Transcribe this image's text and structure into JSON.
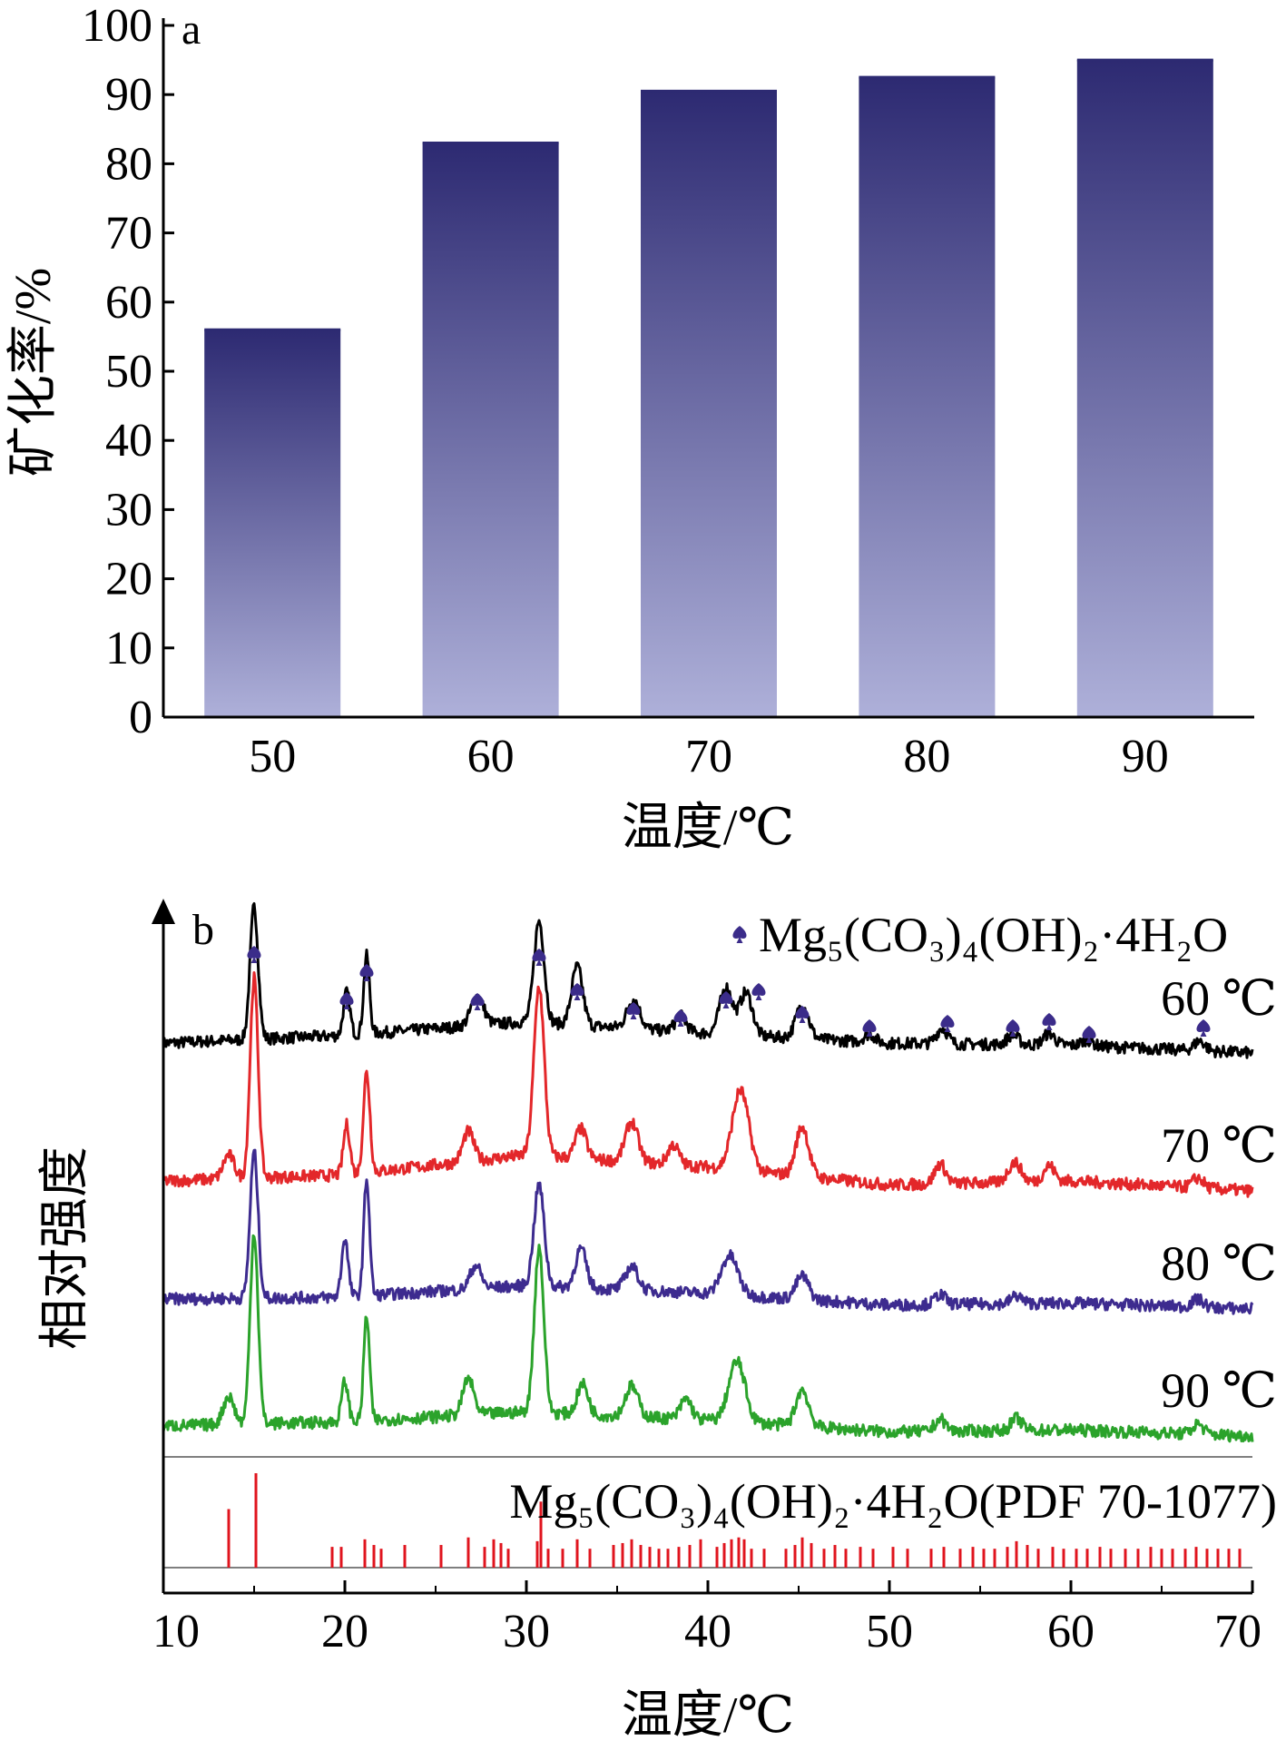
{
  "colors": {
    "bar_top": "#2d2a72",
    "bar_bottom": "#aeb0d9",
    "marker": "#3b2c8a",
    "axis": "#000000",
    "reference_line": "#7f7f7f",
    "reference_stick": "#e0141e"
  },
  "chart_data": [
    {
      "type": "bar",
      "panel_label": "a",
      "categories": [
        "50",
        "60",
        "70",
        "80",
        "90"
      ],
      "values": [
        56,
        83,
        90.5,
        92.5,
        95
      ],
      "xlabel": "温度/℃",
      "ylabel": "矿化率/%",
      "ylim": [
        0,
        100
      ],
      "yticks": [
        "0",
        "10",
        "20",
        "30",
        "40",
        "50",
        "60",
        "70",
        "80",
        "90",
        "100"
      ]
    },
    {
      "type": "line",
      "panel_label": "b",
      "xlabel": "温度/℃",
      "ylabel": "相对强度",
      "xlim": [
        10,
        70
      ],
      "xticks": [
        "10",
        "20",
        "30",
        "40",
        "50",
        "60",
        "70"
      ],
      "legend": {
        "symbol": "spade-marker",
        "text": "Mg₅(CO₃)₄(OH)₂·4H₂O",
        "position": "top-right"
      },
      "reference": {
        "label": "Mg₅(CO₃)₄(OH)₂·4H₂O(PDF 70-1077)",
        "peaks": [
          {
            "x": 13.6,
            "h": 0.62
          },
          {
            "x": 15.1,
            "h": 1.0
          },
          {
            "x": 19.3,
            "h": 0.22
          },
          {
            "x": 19.8,
            "h": 0.22
          },
          {
            "x": 21.1,
            "h": 0.3
          },
          {
            "x": 21.6,
            "h": 0.24
          },
          {
            "x": 22.0,
            "h": 0.2
          },
          {
            "x": 23.3,
            "h": 0.24
          },
          {
            "x": 25.3,
            "h": 0.24
          },
          {
            "x": 26.8,
            "h": 0.32
          },
          {
            "x": 27.7,
            "h": 0.22
          },
          {
            "x": 28.2,
            "h": 0.3
          },
          {
            "x": 28.6,
            "h": 0.26
          },
          {
            "x": 29.0,
            "h": 0.2
          },
          {
            "x": 30.6,
            "h": 0.28
          },
          {
            "x": 30.8,
            "h": 0.7
          },
          {
            "x": 31.2,
            "h": 0.2
          },
          {
            "x": 32.0,
            "h": 0.2
          },
          {
            "x": 32.8,
            "h": 0.3
          },
          {
            "x": 33.5,
            "h": 0.2
          },
          {
            "x": 34.8,
            "h": 0.24
          },
          {
            "x": 35.3,
            "h": 0.26
          },
          {
            "x": 35.8,
            "h": 0.3
          },
          {
            "x": 36.3,
            "h": 0.24
          },
          {
            "x": 36.8,
            "h": 0.22
          },
          {
            "x": 37.3,
            "h": 0.2
          },
          {
            "x": 37.8,
            "h": 0.2
          },
          {
            "x": 38.4,
            "h": 0.22
          },
          {
            "x": 39.0,
            "h": 0.24
          },
          {
            "x": 39.6,
            "h": 0.3
          },
          {
            "x": 40.5,
            "h": 0.22
          },
          {
            "x": 40.9,
            "h": 0.26
          },
          {
            "x": 41.3,
            "h": 0.3
          },
          {
            "x": 41.7,
            "h": 0.32
          },
          {
            "x": 42.0,
            "h": 0.3
          },
          {
            "x": 42.4,
            "h": 0.2
          },
          {
            "x": 43.1,
            "h": 0.2
          },
          {
            "x": 44.3,
            "h": 0.2
          },
          {
            "x": 44.8,
            "h": 0.24
          },
          {
            "x": 45.2,
            "h": 0.32
          },
          {
            "x": 45.7,
            "h": 0.26
          },
          {
            "x": 46.4,
            "h": 0.2
          },
          {
            "x": 47.0,
            "h": 0.24
          },
          {
            "x": 47.6,
            "h": 0.2
          },
          {
            "x": 48.4,
            "h": 0.22
          },
          {
            "x": 49.1,
            "h": 0.2
          },
          {
            "x": 50.2,
            "h": 0.22
          },
          {
            "x": 51.0,
            "h": 0.2
          },
          {
            "x": 52.3,
            "h": 0.2
          },
          {
            "x": 53.0,
            "h": 0.22
          },
          {
            "x": 53.9,
            "h": 0.2
          },
          {
            "x": 54.6,
            "h": 0.22
          },
          {
            "x": 55.2,
            "h": 0.2
          },
          {
            "x": 55.8,
            "h": 0.2
          },
          {
            "x": 56.5,
            "h": 0.22
          },
          {
            "x": 57.0,
            "h": 0.28
          },
          {
            "x": 57.6,
            "h": 0.24
          },
          {
            "x": 58.2,
            "h": 0.2
          },
          {
            "x": 59.0,
            "h": 0.22
          },
          {
            "x": 59.6,
            "h": 0.2
          },
          {
            "x": 60.3,
            "h": 0.2
          },
          {
            "x": 60.9,
            "h": 0.2
          },
          {
            "x": 61.6,
            "h": 0.22
          },
          {
            "x": 62.2,
            "h": 0.2
          },
          {
            "x": 63.0,
            "h": 0.2
          },
          {
            "x": 63.7,
            "h": 0.2
          },
          {
            "x": 64.4,
            "h": 0.22
          },
          {
            "x": 65.0,
            "h": 0.2
          },
          {
            "x": 65.6,
            "h": 0.2
          },
          {
            "x": 66.3,
            "h": 0.2
          },
          {
            "x": 66.9,
            "h": 0.22
          },
          {
            "x": 67.5,
            "h": 0.2
          },
          {
            "x": 68.1,
            "h": 0.2
          },
          {
            "x": 68.7,
            "h": 0.2
          },
          {
            "x": 69.3,
            "h": 0.2
          }
        ]
      },
      "series": [
        {
          "name": "60 ℃",
          "color": "#000000",
          "baseline": [
            [
              10,
              0.05
            ],
            [
              20,
              0.09
            ],
            [
              30,
              0.16
            ],
            [
              40,
              0.1
            ],
            [
              50,
              0.05
            ],
            [
              60,
              0.04
            ],
            [
              70,
              0.0
            ]
          ],
          "peaks": [
            [
              15.0,
              0.68,
              0.22
            ],
            [
              20.1,
              0.22,
              0.18
            ],
            [
              21.2,
              0.4,
              0.16
            ],
            [
              27.3,
              0.15,
              0.35
            ],
            [
              30.7,
              0.52,
              0.28
            ],
            [
              32.8,
              0.3,
              0.3
            ],
            [
              35.9,
              0.15,
              0.35
            ],
            [
              38.5,
              0.08,
              0.3
            ],
            [
              41.0,
              0.24,
              0.35
            ],
            [
              42.1,
              0.22,
              0.35
            ],
            [
              45.2,
              0.17,
              0.35
            ],
            [
              48.9,
              0.04,
              0.3
            ],
            [
              52.9,
              0.08,
              0.3
            ],
            [
              56.8,
              0.05,
              0.3
            ],
            [
              58.8,
              0.06,
              0.3
            ],
            [
              60.9,
              0.03,
              0.3
            ],
            [
              67.1,
              0.05,
              0.3
            ]
          ]
        },
        {
          "name": "70 ℃",
          "color": "#e3272a",
          "baseline": [
            [
              10,
              0.05
            ],
            [
              20,
              0.08
            ],
            [
              30,
              0.18
            ],
            [
              40,
              0.12
            ],
            [
              50,
              0.03
            ],
            [
              60,
              0.05
            ],
            [
              70,
              0.0
            ]
          ],
          "peaks": [
            [
              13.6,
              0.12,
              0.3
            ],
            [
              15.0,
              1.0,
              0.22
            ],
            [
              20.1,
              0.25,
              0.18
            ],
            [
              21.2,
              0.5,
              0.18
            ],
            [
              26.8,
              0.15,
              0.3
            ],
            [
              30.7,
              0.85,
              0.28
            ],
            [
              33.0,
              0.15,
              0.3
            ],
            [
              35.8,
              0.2,
              0.35
            ],
            [
              38.1,
              0.1,
              0.3
            ],
            [
              41.8,
              0.4,
              0.45
            ],
            [
              45.2,
              0.25,
              0.35
            ],
            [
              52.8,
              0.1,
              0.3
            ],
            [
              56.9,
              0.1,
              0.35
            ],
            [
              58.8,
              0.08,
              0.3
            ],
            [
              67.0,
              0.05,
              0.3
            ]
          ]
        },
        {
          "name": "80 ℃",
          "color": "#3d2b8f",
          "baseline": [
            [
              10,
              0.05
            ],
            [
              20,
              0.06
            ],
            [
              30,
              0.12
            ],
            [
              40,
              0.08
            ],
            [
              50,
              0.02
            ],
            [
              60,
              0.03
            ],
            [
              70,
              0.0
            ]
          ],
          "peaks": [
            [
              15.0,
              0.75,
              0.22
            ],
            [
              20.0,
              0.3,
              0.18
            ],
            [
              21.2,
              0.6,
              0.16
            ],
            [
              27.2,
              0.12,
              0.3
            ],
            [
              30.7,
              0.52,
              0.28
            ],
            [
              33.0,
              0.2,
              0.3
            ],
            [
              35.8,
              0.12,
              0.35
            ],
            [
              41.2,
              0.2,
              0.45
            ],
            [
              45.2,
              0.12,
              0.35
            ],
            [
              52.8,
              0.05,
              0.3
            ],
            [
              57.0,
              0.04,
              0.3
            ],
            [
              67.0,
              0.04,
              0.3
            ]
          ]
        },
        {
          "name": "90 ℃",
          "color": "#2ba32b",
          "baseline": [
            [
              10,
              0.05
            ],
            [
              20,
              0.07
            ],
            [
              30,
              0.12
            ],
            [
              40,
              0.08
            ],
            [
              50,
              0.02
            ],
            [
              60,
              0.03
            ],
            [
              70,
              0.0
            ]
          ],
          "peaks": [
            [
              13.6,
              0.14,
              0.3
            ],
            [
              15.0,
              0.95,
              0.22
            ],
            [
              20.0,
              0.2,
              0.18
            ],
            [
              21.2,
              0.52,
              0.16
            ],
            [
              26.8,
              0.18,
              0.3
            ],
            [
              30.7,
              0.82,
              0.26
            ],
            [
              33.1,
              0.15,
              0.3
            ],
            [
              35.8,
              0.15,
              0.35
            ],
            [
              38.8,
              0.1,
              0.3
            ],
            [
              41.6,
              0.3,
              0.45
            ],
            [
              45.2,
              0.18,
              0.35
            ],
            [
              52.8,
              0.06,
              0.3
            ],
            [
              57.0,
              0.06,
              0.3
            ],
            [
              67.0,
              0.05,
              0.3
            ]
          ]
        }
      ],
      "markers_x": [
        15.0,
        20.1,
        21.2,
        27.3,
        30.7,
        32.8,
        35.9,
        38.5,
        41.0,
        42.8,
        45.2,
        48.9,
        53.2,
        56.8,
        58.8,
        61.0,
        67.3
      ]
    }
  ]
}
